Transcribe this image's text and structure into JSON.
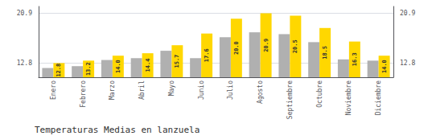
{
  "chart_data": {
    "type": "bar",
    "title": "Temperaturas Medias en lanzuela",
    "categories": [
      "Enero",
      "Febrero",
      "Marzo",
      "Abril",
      "Mayo",
      "Junio",
      "Julio",
      "Agosto",
      "Septiembre",
      "Octubre",
      "Noviembre",
      "Diciembre"
    ],
    "series": [
      {
        "color": "#B0B0B0",
        "values": [
          12.0,
          12.3,
          13.3,
          13.6,
          14.8,
          13.6,
          17.0,
          17.8,
          17.5,
          16.2,
          13.4,
          13.2
        ]
      },
      {
        "color": "#FFD700",
        "values": [
          12.8,
          13.2,
          14.0,
          14.4,
          15.7,
          17.6,
          20.0,
          20.9,
          20.5,
          18.5,
          16.3,
          14.0
        ],
        "data_labels": true,
        "value_labels": [
          "12.8",
          "13.2",
          "14.0",
          "14.4",
          "15.7",
          "17.6",
          "20.0",
          "20.9",
          "20.5",
          "18.5",
          "16.3",
          "14.0"
        ]
      }
    ],
    "ylim": [
      10.5,
      22.0
    ],
    "yticks": [
      12.8,
      20.9
    ],
    "y2lim": [
      10.5,
      22.0
    ],
    "y2ticks": [
      12.8,
      20.9
    ],
    "grid": true
  }
}
